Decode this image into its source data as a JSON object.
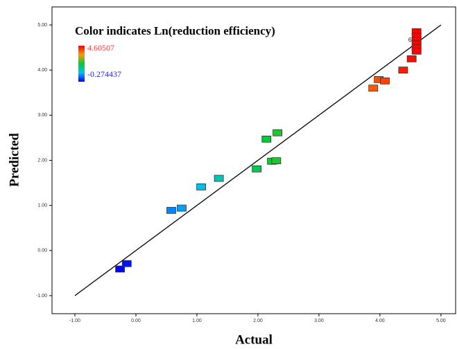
{
  "chart_data": {
    "type": "scatter",
    "title": "Color indicates Ln(reduction efficiency)",
    "x_label": "Actual",
    "y_label": "Predicted",
    "color_max_label": "4.60507",
    "color_min_label": "-0.274437",
    "color_range": [
      -0.274437,
      4.60507
    ],
    "annotation": "6",
    "xlim": [
      -1.375,
      5.24
    ],
    "ylim": [
      -1.4,
      5.4
    ],
    "xticks": [
      {
        "value": -1,
        "label": "-1.00"
      },
      {
        "value": 0,
        "label": "0.00"
      },
      {
        "value": 1,
        "label": "1.00"
      },
      {
        "value": 2,
        "label": "2.00"
      },
      {
        "value": 3,
        "label": "3.00"
      },
      {
        "value": 4,
        "label": "4.00"
      },
      {
        "value": 5,
        "label": "5.00"
      }
    ],
    "yticks": [
      {
        "value": -1,
        "label": "-1.00"
      },
      {
        "value": 0,
        "label": "0.00"
      },
      {
        "value": 1,
        "label": "1.00"
      },
      {
        "value": 2,
        "label": "2.00"
      },
      {
        "value": 3,
        "label": "3.00"
      },
      {
        "value": 4,
        "label": "4.00"
      },
      {
        "value": 5,
        "label": "5.00"
      }
    ],
    "fit_line": {
      "x": [
        -1,
        5
      ],
      "y": [
        -1,
        5
      ]
    },
    "x": [
      -0.26,
      -0.15,
      0.58,
      0.75,
      1.07,
      1.36,
      1.98,
      2.14,
      2.23,
      2.3,
      2.32,
      3.89,
      3.98,
      4.08,
      4.38,
      4.52,
      4.6,
      4.6,
      4.6,
      4.6,
      4.6,
      4.6
    ],
    "y": [
      -0.41,
      -0.29,
      0.89,
      0.94,
      1.41,
      1.6,
      1.81,
      2.47,
      1.98,
      1.99,
      2.61,
      3.6,
      3.79,
      3.76,
      4.0,
      4.25,
      4.85,
      4.75,
      4.66,
      4.58,
      4.5,
      4.42
    ]
  }
}
